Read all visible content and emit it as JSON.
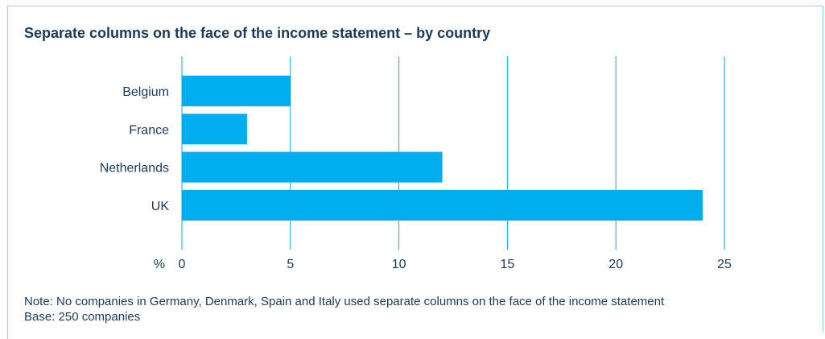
{
  "chart_data": {
    "type": "bar",
    "orientation": "horizontal",
    "title": "Separate columns on the face of the income statement – by country",
    "unit_label": "%",
    "categories": [
      "Belgium",
      "France",
      "Netherlands",
      "UK"
    ],
    "values": [
      5,
      3,
      12,
      24
    ],
    "xlim": [
      0,
      25
    ],
    "xticks": [
      0,
      5,
      10,
      15,
      20,
      25
    ],
    "grid": "vertical",
    "colors": {
      "bar": "#00aeef",
      "grid": "#00aeef",
      "text": "#1a3a5c"
    }
  },
  "notes": {
    "note": "Note: No companies in Germany, Denmark, Spain and Italy used separate columns on the face of the income statement",
    "base": "Base: 250 companies"
  }
}
